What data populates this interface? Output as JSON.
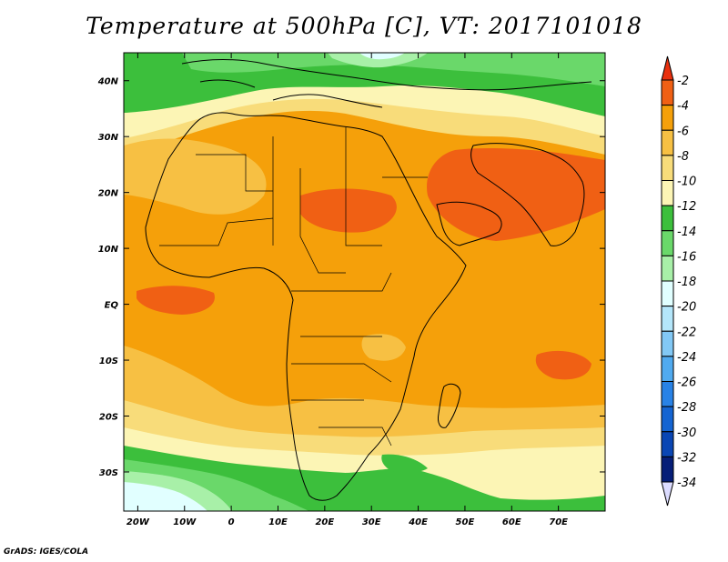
{
  "title": "Temperature at 500hPa [C], VT: 2017101018",
  "credit": "GrADS: IGES/COLA",
  "map": {
    "region": "Africa and surrounding seas",
    "lon_range": [
      -23,
      80
    ],
    "lat_range": [
      -37,
      45
    ],
    "lat_labels": [
      {
        "value": 40,
        "label": "40N"
      },
      {
        "value": 30,
        "label": "30N"
      },
      {
        "value": 20,
        "label": "20N"
      },
      {
        "value": 10,
        "label": "10N"
      },
      {
        "value": 0,
        "label": "EQ"
      },
      {
        "value": -10,
        "label": "10S"
      },
      {
        "value": -20,
        "label": "20S"
      },
      {
        "value": -30,
        "label": "30S"
      }
    ],
    "lon_labels": [
      {
        "value": -20,
        "label": "20W"
      },
      {
        "value": -10,
        "label": "10W"
      },
      {
        "value": 0,
        "label": "0"
      },
      {
        "value": 10,
        "label": "10E"
      },
      {
        "value": 20,
        "label": "20E"
      },
      {
        "value": 30,
        "label": "30E"
      },
      {
        "value": 40,
        "label": "40E"
      },
      {
        "value": 50,
        "label": "50E"
      },
      {
        "value": 60,
        "label": "60E"
      },
      {
        "value": 70,
        "label": "70E"
      }
    ]
  },
  "colorbar": {
    "labels": [
      "-2",
      "-4",
      "-6",
      "-8",
      "-10",
      "-12",
      "-14",
      "-16",
      "-18",
      "-20",
      "-22",
      "-24",
      "-26",
      "-28",
      "-30",
      "-32",
      "-34"
    ],
    "colors": [
      "#e8300e",
      "#f06014",
      "#f5a00a",
      "#f7c043",
      "#f8dc7a",
      "#fcf5b5",
      "#3cbf3c",
      "#6ad86a",
      "#a8f0a8",
      "#e1ffff",
      "#b4e6fa",
      "#82c8f5",
      "#50aaf0",
      "#2882e6",
      "#1464d2",
      "#0a46b4",
      "#061e78",
      "#dcdcff"
    ]
  }
}
